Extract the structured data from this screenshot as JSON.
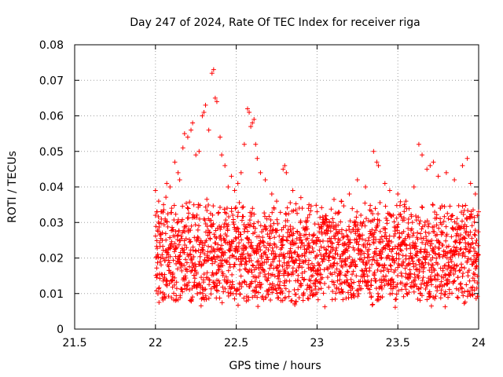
{
  "chart_data": {
    "type": "scatter",
    "title": "Day 247 of 2024, Rate Of TEC Index for receiver riga",
    "xlabel": "GPS time / hours",
    "ylabel": "ROTI / TECUs",
    "xlim": [
      21.5,
      24
    ],
    "ylim": [
      0,
      0.08
    ],
    "xticks": [
      21.5,
      22,
      22.5,
      23,
      23.5,
      24
    ],
    "xtick_labels": [
      "21.5",
      "22",
      "22.5",
      "23",
      "23.5",
      "24"
    ],
    "yticks": [
      0,
      0.01,
      0.02,
      0.03,
      0.04,
      0.05,
      0.06,
      0.07,
      0.08
    ],
    "ytick_labels": [
      "0",
      "0.01",
      "0.02",
      "0.03",
      "0.04",
      "0.05",
      "0.06",
      "0.07",
      "0.08"
    ],
    "grid": true,
    "marker": "+",
    "color": "#ff0000",
    "series": [
      {
        "name": "ROTI",
        "points": [
          [
            22.0,
            0.039
          ],
          [
            22.01,
            0.033
          ],
          [
            22.02,
            0.036
          ],
          [
            22.03,
            0.027
          ],
          [
            22.05,
            0.035
          ],
          [
            22.06,
            0.031
          ],
          [
            22.07,
            0.041
          ],
          [
            22.09,
            0.04
          ],
          [
            22.1,
            0.034
          ],
          [
            22.12,
            0.047
          ],
          [
            22.14,
            0.044
          ],
          [
            22.15,
            0.042
          ],
          [
            22.17,
            0.051
          ],
          [
            22.18,
            0.055
          ],
          [
            22.2,
            0.054
          ],
          [
            22.22,
            0.056
          ],
          [
            22.23,
            0.058
          ],
          [
            22.25,
            0.049
          ],
          [
            22.27,
            0.05
          ],
          [
            22.29,
            0.06
          ],
          [
            22.3,
            0.061
          ],
          [
            22.31,
            0.063
          ],
          [
            22.33,
            0.056
          ],
          [
            22.35,
            0.072
          ],
          [
            22.36,
            0.073
          ],
          [
            22.37,
            0.065
          ],
          [
            22.38,
            0.064
          ],
          [
            22.4,
            0.054
          ],
          [
            22.41,
            0.049
          ],
          [
            22.43,
            0.046
          ],
          [
            22.45,
            0.04
          ],
          [
            22.47,
            0.043
          ],
          [
            22.49,
            0.039
          ],
          [
            22.51,
            0.041
          ],
          [
            22.53,
            0.044
          ],
          [
            22.55,
            0.052
          ],
          [
            22.57,
            0.062
          ],
          [
            22.58,
            0.061
          ],
          [
            22.59,
            0.057
          ],
          [
            22.6,
            0.058
          ],
          [
            22.61,
            0.059
          ],
          [
            22.62,
            0.052
          ],
          [
            22.63,
            0.048
          ],
          [
            22.65,
            0.044
          ],
          [
            22.68,
            0.042
          ],
          [
            22.72,
            0.038
          ],
          [
            22.75,
            0.036
          ],
          [
            22.79,
            0.045
          ],
          [
            22.8,
            0.046
          ],
          [
            22.81,
            0.044
          ],
          [
            22.85,
            0.039
          ],
          [
            22.9,
            0.037
          ],
          [
            22.95,
            0.035
          ],
          [
            23.0,
            0.033
          ],
          [
            23.05,
            0.031
          ],
          [
            23.1,
            0.03
          ],
          [
            23.15,
            0.036
          ],
          [
            23.2,
            0.038
          ],
          [
            23.25,
            0.042
          ],
          [
            23.3,
            0.04
          ],
          [
            23.35,
            0.05
          ],
          [
            23.37,
            0.047
          ],
          [
            23.38,
            0.046
          ],
          [
            23.42,
            0.041
          ],
          [
            23.45,
            0.039
          ],
          [
            23.5,
            0.038
          ],
          [
            23.55,
            0.036
          ],
          [
            23.6,
            0.04
          ],
          [
            23.63,
            0.052
          ],
          [
            23.65,
            0.049
          ],
          [
            23.68,
            0.045
          ],
          [
            23.7,
            0.046
          ],
          [
            23.72,
            0.047
          ],
          [
            23.75,
            0.043
          ],
          [
            23.8,
            0.044
          ],
          [
            23.85,
            0.042
          ],
          [
            23.9,
            0.046
          ],
          [
            23.93,
            0.048
          ],
          [
            23.95,
            0.041
          ],
          [
            23.98,
            0.038
          ]
        ],
        "band_summary": {
          "typical_min": 0.008,
          "typical_median": 0.021,
          "typical_max": 0.035,
          "x_start": 22.0,
          "x_end": 24.0
        }
      }
    ]
  }
}
